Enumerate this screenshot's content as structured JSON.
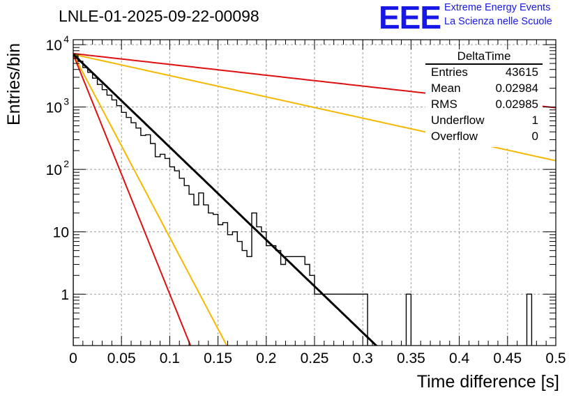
{
  "header": {
    "title": "LNLE-01-2025-09-22-00098",
    "logo_text": "EEE",
    "logo_line1": "Extreme Energy Events",
    "logo_line2": "La Scienza nelle Scuole",
    "logo_color": "#1717e6"
  },
  "stats": {
    "title": "DeltaTime",
    "rows": [
      {
        "label": "Entries",
        "value": "43615"
      },
      {
        "label": "Mean",
        "value": "0.02984"
      },
      {
        "label": "RMS",
        "value": "0.02985"
      },
      {
        "label": "Underflow",
        "value": "1"
      },
      {
        "label": "Overflow",
        "value": "0"
      }
    ]
  },
  "chart_data": {
    "type": "histogram",
    "title": "LNLE-01-2025-09-22-00098",
    "xlabel": "Time difference [s]",
    "ylabel": "Entries/bin",
    "xlim": [
      0,
      0.5
    ],
    "ylim": [
      0.15,
      12000
    ],
    "yscale": "log",
    "grid": true,
    "x_ticks": [
      "0",
      "0.05",
      "0.1",
      "0.15",
      "0.2",
      "0.25",
      "0.3",
      "0.35",
      "0.4",
      "0.45",
      "0.5"
    ],
    "y_ticks": [
      {
        "value": 10000,
        "base": "10",
        "exp": "4"
      },
      {
        "value": 1000,
        "base": "10",
        "exp": "3"
      },
      {
        "value": 100,
        "base": "10",
        "exp": "2"
      },
      {
        "value": 10,
        "base": "10",
        "exp": ""
      },
      {
        "value": 1,
        "base": "1",
        "exp": ""
      }
    ],
    "bin_width": 0.005,
    "bin_counts": [
      6600,
      5400,
      4300,
      3600,
      2900,
      2300,
      1900,
      1550,
      1300,
      1050,
      820,
      680,
      560,
      460,
      350,
      360,
      260,
      160,
      175,
      150,
      110,
      95,
      72,
      55,
      40,
      27,
      42,
      27,
      20,
      19,
      13,
      14,
      9,
      10,
      7,
      5,
      4,
      20,
      12,
      10,
      6,
      6,
      5,
      3,
      4,
      4,
      4,
      4,
      3,
      2,
      1,
      1,
      1,
      1,
      1,
      1,
      1,
      1,
      1,
      1,
      1
    ],
    "series": [
      {
        "name": "fit",
        "color": "#000000",
        "amplitude": 7000,
        "tau": 0.0292,
        "x_range": [
          0,
          0.33
        ]
      },
      {
        "name": "tau_upper_slow",
        "color": "#dd1111",
        "amplitude": 7200,
        "tau": 0.25
      },
      {
        "name": "tau_upper_mid",
        "color": "#f5b800",
        "amplitude": 7000,
        "tau": 0.1273
      },
      {
        "name": "tau_lower_fast",
        "color": "#dd1111",
        "amplitude": 7000,
        "tau": 0.0113
      },
      {
        "name": "tau_lower_mid",
        "color": "#f5b800",
        "amplitude": 7000,
        "tau": 0.0148
      }
    ]
  }
}
